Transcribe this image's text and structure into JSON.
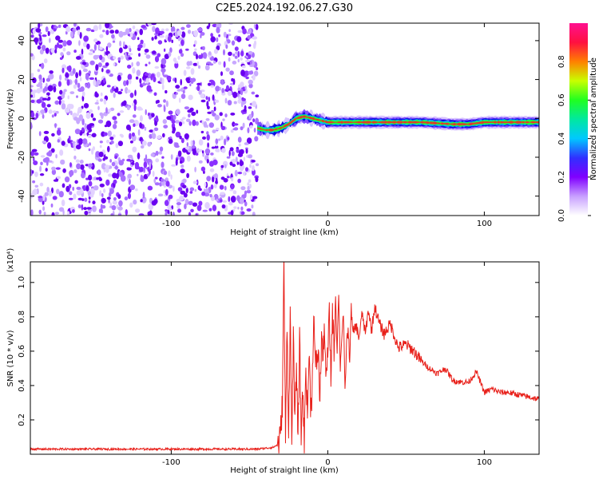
{
  "title": "C2E5.2024.192.06.27.G30",
  "chart_data": [
    {
      "type": "heatmap",
      "title": "C2E5.2024.192.06.27.G30",
      "xlabel": "Height of straight line (km)",
      "ylabel": "Frequency (Hz)",
      "xlim": [
        -190,
        135
      ],
      "ylim": [
        -50,
        49
      ],
      "x_ticks": [
        -100,
        0,
        100
      ],
      "y_ticks": [
        -40,
        -20,
        0,
        20,
        40
      ],
      "grid": false,
      "noise_region_x": [
        -190,
        -45
      ],
      "signal_track": [
        {
          "x": -45,
          "y": -5
        },
        {
          "x": -40,
          "y": -6
        },
        {
          "x": -35,
          "y": -6
        },
        {
          "x": -30,
          "y": -5
        },
        {
          "x": -25,
          "y": -3
        },
        {
          "x": -20,
          "y": 0
        },
        {
          "x": -15,
          "y": 1
        },
        {
          "x": -10,
          "y": 0
        },
        {
          "x": -5,
          "y": -1
        },
        {
          "x": 0,
          "y": -2
        },
        {
          "x": 20,
          "y": -2
        },
        {
          "x": 60,
          "y": -2
        },
        {
          "x": 80,
          "y": -3
        },
        {
          "x": 90,
          "y": -3
        },
        {
          "x": 100,
          "y": -2
        },
        {
          "x": 135,
          "y": -2
        }
      ],
      "colorbar": {
        "label": "Normalized spectral amplitude",
        "range": [
          0,
          1
        ],
        "ticks": [
          "0.0",
          "0.2",
          "0.4",
          "0.6",
          "0.8"
        ],
        "colors": [
          "#ffffff",
          "#c8a0ff",
          "#8000ff",
          "#3030ff",
          "#00c8ff",
          "#00e8a0",
          "#20ff20",
          "#c8ff00",
          "#ff8000",
          "#ff1040",
          "#ff1090"
        ]
      }
    },
    {
      "type": "line",
      "xlabel": "Height of straight line (km)",
      "ylabel": "SNR (10 * v/v)",
      "y_multiplier": "(x10⁴)",
      "xlim": [
        -190,
        135
      ],
      "ylim": [
        0,
        1.12
      ],
      "x_ticks": [
        -100,
        0,
        100
      ],
      "y_ticks": [
        "0.2",
        "0.4",
        "0.6",
        "0.8",
        "1.0"
      ],
      "grid": false,
      "color": "#e8201a",
      "x": [
        -190,
        -160,
        -130,
        -100,
        -70,
        -45,
        -35,
        -31,
        -30,
        -29,
        -28,
        -27,
        -26,
        -25,
        -24,
        -23,
        -22,
        -21,
        -20,
        -19,
        -18,
        -17,
        -16,
        -15,
        -14,
        -13,
        -12,
        -11,
        -10,
        -9,
        -8,
        -7,
        -6,
        -5,
        -4,
        -3,
        -2,
        -1,
        0,
        1,
        2,
        3,
        4,
        5,
        6,
        7,
        8,
        9,
        10,
        11,
        12,
        13,
        14,
        15,
        16,
        18,
        20,
        22,
        24,
        26,
        28,
        30,
        33,
        36,
        40,
        45,
        50,
        55,
        60,
        65,
        70,
        75,
        80,
        85,
        90,
        95,
        100,
        105,
        110,
        115,
        120,
        125,
        130,
        135
      ],
      "values": [
        0.03,
        0.03,
        0.03,
        0.03,
        0.03,
        0.03,
        0.04,
        0.06,
        0.15,
        0.3,
        1.12,
        0.05,
        0.8,
        0.1,
        0.85,
        0.05,
        0.7,
        0.15,
        0.55,
        0.05,
        0.7,
        0.1,
        0.4,
        0.05,
        0.55,
        0.2,
        0.6,
        0.3,
        0.35,
        0.85,
        0.5,
        0.55,
        0.6,
        0.3,
        0.7,
        0.55,
        0.75,
        0.4,
        0.6,
        0.8,
        0.45,
        0.85,
        0.6,
        0.92,
        0.6,
        0.95,
        0.5,
        0.7,
        0.82,
        0.35,
        0.65,
        0.72,
        0.55,
        0.85,
        0.7,
        0.75,
        0.68,
        0.82,
        0.7,
        0.84,
        0.72,
        0.86,
        0.76,
        0.7,
        0.76,
        0.62,
        0.64,
        0.6,
        0.54,
        0.5,
        0.47,
        0.5,
        0.43,
        0.42,
        0.42,
        0.48,
        0.36,
        0.38,
        0.36,
        0.36,
        0.35,
        0.34,
        0.33,
        0.32
      ]
    }
  ]
}
